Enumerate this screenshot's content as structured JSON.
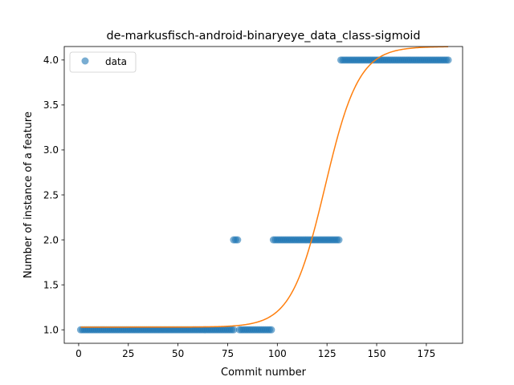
{
  "chart_data": {
    "type": "scatter",
    "title": "de-markusfisch-android-binaryeye_data_class-sigmoid",
    "xlabel": "Commit number",
    "ylabel": "Number of instance of a feature",
    "xlim": [
      -7.25,
      193.25
    ],
    "ylim": [
      0.85,
      4.15
    ],
    "x_ticks": [
      0,
      25,
      50,
      75,
      100,
      125,
      150,
      175
    ],
    "x_tick_labels": [
      "0",
      "25",
      "50",
      "75",
      "100",
      "125",
      "150",
      "175"
    ],
    "y_ticks": [
      1.0,
      1.5,
      2.0,
      2.5,
      3.0,
      3.5,
      4.0
    ],
    "y_tick_labels": [
      "1.0",
      "1.5",
      "2.0",
      "2.5",
      "3.0",
      "3.5",
      "4.0"
    ],
    "grid": false,
    "legend": {
      "placement": "top-left",
      "entries": [
        "data"
      ]
    },
    "series": [
      {
        "name": "data",
        "kind": "scatter",
        "color": "#1f77b4",
        "segments": [
          {
            "x_from": 1,
            "x_to": 78,
            "y": 1.0
          },
          {
            "x_from": 78,
            "x_to": 80,
            "y": 2.0
          },
          {
            "x_from": 81,
            "x_to": 97,
            "y": 1.0
          },
          {
            "x_from": 98,
            "x_to": 131,
            "y": 2.0
          },
          {
            "x_from": 132,
            "x_to": 186,
            "y": 4.0
          }
        ]
      },
      {
        "kind": "line",
        "color": "#ff7f0e",
        "model": "sigmoid",
        "params": {
          "base": 1.03,
          "amplitude": 3.12,
          "midpoint": 124,
          "scale": 8.5
        },
        "x_range": [
          1,
          186
        ]
      }
    ]
  }
}
